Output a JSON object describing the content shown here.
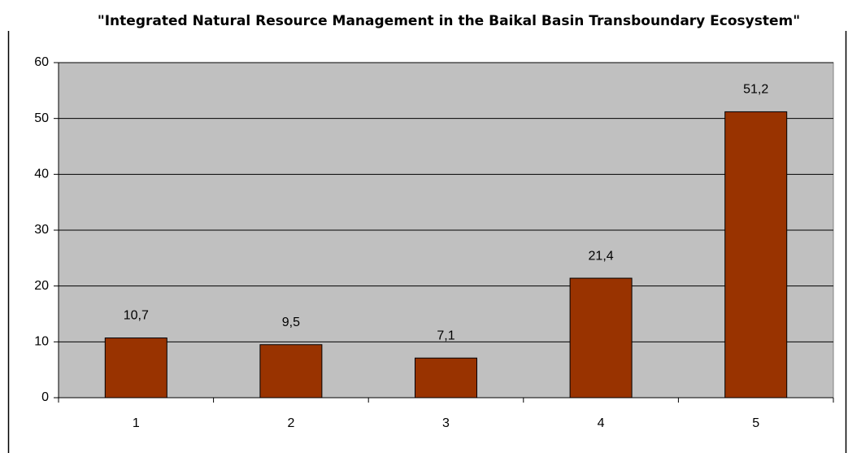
{
  "chart_data": {
    "type": "bar",
    "title": "\"Integrated Natural Resource Management in the Baikal Basin Transboundary Ecosystem\"",
    "categories": [
      "1",
      "2",
      "3",
      "4",
      "5"
    ],
    "values": [
      10.7,
      9.5,
      7.1,
      21.4,
      51.2
    ],
    "value_labels": [
      "10,7",
      "9,5",
      "7,1",
      "21,4",
      "51,2"
    ],
    "color": "#993300",
    "ylim": [
      0,
      60
    ],
    "yticks": [
      0,
      10,
      20,
      30,
      40,
      50,
      60
    ],
    "grid": true
  }
}
